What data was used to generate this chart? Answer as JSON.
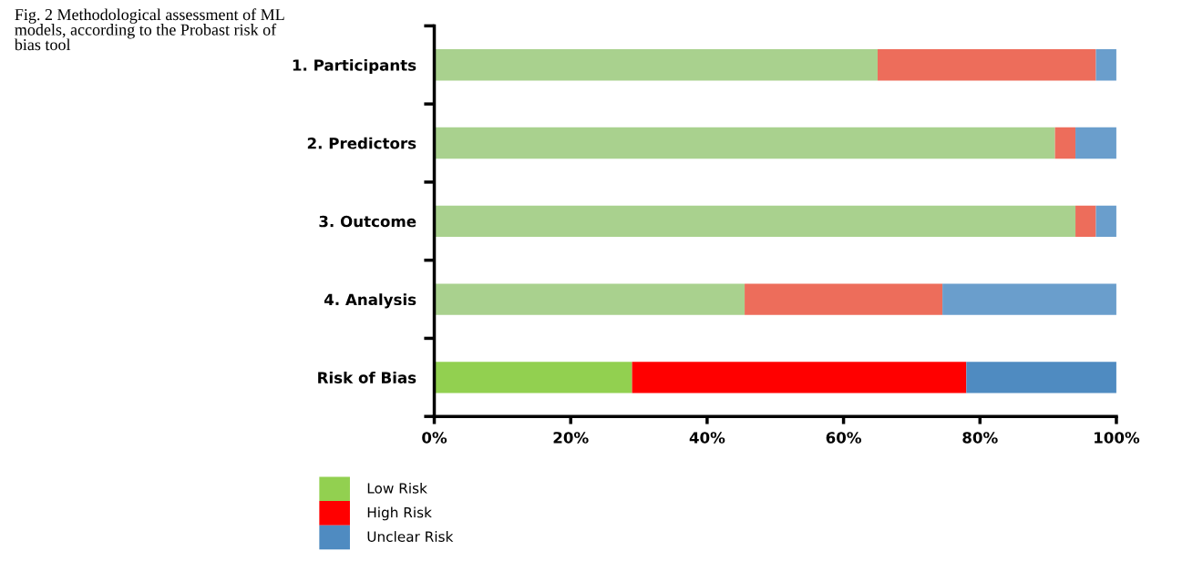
{
  "chart_data": {
    "type": "bar",
    "orientation": "horizontal",
    "stacked": true,
    "title": "Fig. 2 Methodological assessment of ML models, according to the Probast risk of bias tool",
    "categories": [
      "1. Participants",
      "2. Predictors",
      "3. Outcome",
      "4. Analysis",
      "Risk of Bias"
    ],
    "series": [
      {
        "name": "Low Risk",
        "color": "#92d050",
        "colors": [
          "#a9d18e",
          "#a9d18e",
          "#a9d18e",
          "#a9d18e",
          "#92d050"
        ],
        "values": [
          65,
          91,
          94,
          45.5,
          29
        ]
      },
      {
        "name": "High Risk",
        "color": "#ff0000",
        "colors": [
          "#ed6d5b",
          "#ed6d5b",
          "#ed6d5b",
          "#ed6d5b",
          "#ff0000"
        ],
        "values": [
          32,
          3,
          3,
          29,
          49
        ]
      },
      {
        "name": "Unclear Risk",
        "color": "#4f8bc1",
        "colors": [
          "#6a9ecc",
          "#6a9ecc",
          "#6a9ecc",
          "#6a9ecc",
          "#4f8bc1"
        ],
        "values": [
          3,
          6,
          3,
          25.5,
          22
        ]
      }
    ],
    "xlim": [
      0,
      100
    ],
    "xticks": [
      {
        "value": 0,
        "label": "0%"
      },
      {
        "value": 20,
        "label": "20%"
      },
      {
        "value": 40,
        "label": "40%"
      },
      {
        "value": 60,
        "label": "60%"
      },
      {
        "value": 80,
        "label": "80%"
      },
      {
        "value": 100,
        "label": "100%"
      }
    ],
    "grid": false,
    "legend": "bottom left"
  }
}
